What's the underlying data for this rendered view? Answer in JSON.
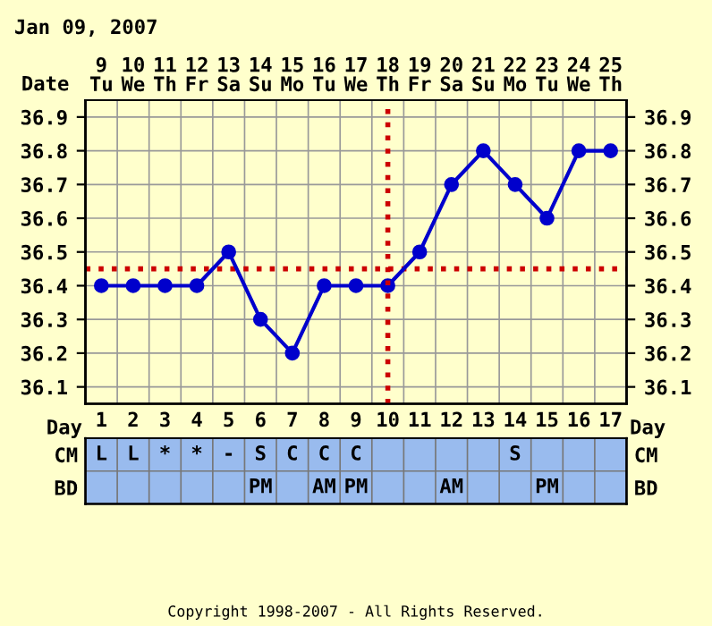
{
  "chart_data": [
    {
      "type": "line",
      "title": "Jan 09, 2007",
      "x2label": "Date",
      "categories": [
        null,
        null,
        null,
        null,
        null,
        null,
        null,
        null,
        null,
        null,
        null,
        null,
        null,
        null,
        null,
        null,
        null
      ],
      "series": [
        {
          "color": "#0000cc",
          "values": [
            36.4,
            36.4,
            36.4,
            36.4,
            36.5,
            36.3,
            36.2,
            36.4,
            36.4,
            36.4,
            36.5,
            36.7,
            36.8,
            36.7,
            36.6,
            36.8,
            36.8
          ]
        }
      ],
      "ylim": [
        36.05,
        36.95
      ],
      "yticks": [
        36.1,
        36.2,
        36.3,
        36.4,
        36.5,
        36.6,
        36.7,
        36.8,
        36.9
      ],
      "y2lim": [
        36.05,
        36.95
      ],
      "y2ticks": [
        36.1,
        36.2,
        36.3,
        36.4,
        36.5,
        36.6,
        36.7,
        36.8,
        36.9
      ],
      "x2lim": [
        8.5,
        25.5
      ],
      "x2ticks": [
        {
          "value": 9,
          "label": "9\nTu"
        },
        {
          "value": 10,
          "label": "10\nWe"
        },
        {
          "value": 11,
          "label": "11\nTh"
        },
        {
          "value": 12,
          "label": "12\nFr"
        },
        {
          "value": 13,
          "label": "13\nSa"
        },
        {
          "value": 14,
          "label": "14\nSu"
        },
        {
          "value": 15,
          "label": "15\nMo"
        },
        {
          "value": 16,
          "label": "16\nTu"
        },
        {
          "value": 17,
          "label": "17\nWe"
        },
        {
          "value": 18,
          "label": "18\nTh"
        },
        {
          "value": 19,
          "label": "19\nFr"
        },
        {
          "value": 20,
          "label": "20\nSa"
        },
        {
          "value": 21,
          "label": "21\nSu"
        },
        {
          "value": 22,
          "label": "22\nMo"
        },
        {
          "value": 23,
          "label": "23\nTu"
        },
        {
          "value": 24,
          "label": "24\nWe"
        },
        {
          "value": 25,
          "label": "25\nTh"
        }
      ],
      "ref_lines": [
        {
          "axis": "y",
          "value": 36.45,
          "color": "#cc0000",
          "line_style": "dotted"
        },
        {
          "axis": "x2",
          "value": 18,
          "color": "#cc0000",
          "line_style": "dotted"
        }
      ],
      "grid": true,
      "marker": "circle",
      "line_style": "solid",
      "tick_labels": "y"
    },
    {
      "type": "heatmap",
      "xlabel": "Day",
      "categories": [
        "1",
        "2",
        "3",
        "4",
        "5",
        "6",
        "7",
        "8",
        "9",
        "10",
        "11",
        "12",
        "13",
        "14",
        "15",
        "16",
        "17"
      ],
      "y_categories": [
        "CM",
        "BD"
      ],
      "y2_categories": [
        "CM",
        "BD"
      ],
      "cells": [
        [
          null,
          null,
          null,
          null,
          null,
          null,
          null,
          null,
          null,
          null,
          null,
          null,
          null,
          null,
          null,
          null,
          null
        ],
        [
          null,
          null,
          null,
          null,
          null,
          null,
          null,
          null,
          null,
          null,
          null,
          null,
          null,
          null,
          null,
          null,
          null
        ]
      ],
      "cell_labels": [
        [
          "L",
          "L",
          "*",
          "*",
          "-",
          "S",
          "C",
          "C",
          "C",
          null,
          null,
          null,
          null,
          "S",
          null,
          null,
          null
        ],
        [
          null,
          null,
          null,
          null,
          null,
          "PM",
          null,
          "AM",
          "PM",
          null,
          null,
          "AM",
          null,
          null,
          "PM",
          null,
          null
        ]
      ],
      "annotations": [
        "Copyright 1998-2007 - All Rights Reserved."
      ]
    }
  ]
}
